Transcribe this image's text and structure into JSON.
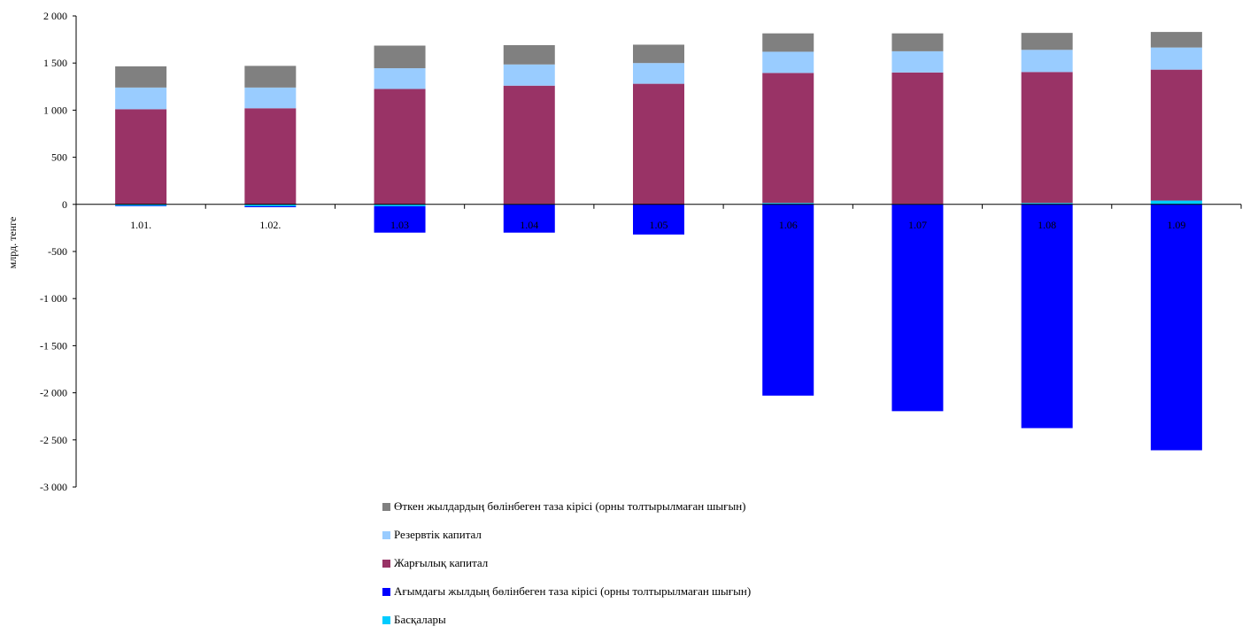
{
  "chart_data": {
    "type": "bar",
    "stacked": true,
    "categories": [
      "1.01.",
      "1.02.",
      "1.03",
      "1.04",
      "1.05",
      "1.06",
      "1.07",
      "1.08",
      "1.09"
    ],
    "ylabel": "млрд. тенге",
    "ylim": [
      -3000,
      2000
    ],
    "yticks": [
      2000,
      1500,
      1000,
      500,
      0,
      -500,
      -1000,
      -1500,
      -2000,
      -2500,
      -3000
    ],
    "ytick_labels": [
      "2 000",
      "1 500",
      "1 000",
      "500",
      "0",
      "-500",
      "-1 000",
      "-1 500",
      "-2 000",
      "-2 500",
      "-3 000"
    ],
    "grid": false,
    "legend_position": "bottom",
    "series": [
      {
        "name": "Өткен жылдардың бөлінбеген таза кірісі (орны толтырылмаған шығын)",
        "color": "#808080",
        "values": [
          225,
          230,
          240,
          205,
          195,
          195,
          190,
          180,
          165
        ]
      },
      {
        "name": "Резервтік капитал",
        "color": "#99ccff",
        "values": [
          230,
          220,
          220,
          225,
          220,
          225,
          225,
          235,
          235
        ]
      },
      {
        "name": "Жарғылық капитал",
        "color": "#993366",
        "values": [
          1010,
          1020,
          1225,
          1255,
          1280,
          1380,
          1395,
          1390,
          1390
        ]
      },
      {
        "name": "Ағымдағы жылдың бөлінбеген таза кірісі (орны толтырылмаған шығын)",
        "color": "#0000ff",
        "values": [
          -5,
          -10,
          -280,
          -300,
          -320,
          -2030,
          -2195,
          -2375,
          -2610
        ]
      },
      {
        "name": "Басқалары",
        "color": "#00ccff",
        "values": [
          -15,
          -20,
          -20,
          5,
          0,
          15,
          5,
          15,
          40
        ]
      }
    ]
  }
}
